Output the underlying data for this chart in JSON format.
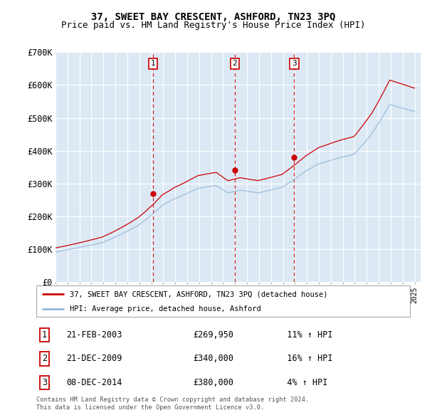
{
  "title": "37, SWEET BAY CRESCENT, ASHFORD, TN23 3PQ",
  "subtitle": "Price paid vs. HM Land Registry's House Price Index (HPI)",
  "ylabel_ticks": [
    "£0",
    "£100K",
    "£200K",
    "£300K",
    "£400K",
    "£500K",
    "£600K",
    "£700K"
  ],
  "ytick_values": [
    0,
    100000,
    200000,
    300000,
    400000,
    500000,
    600000,
    700000
  ],
  "ylim": [
    0,
    700000
  ],
  "xlim_start": 1995.0,
  "xlim_end": 2025.5,
  "hpi_color": "#93b8d8",
  "price_color": "#cc0000",
  "marker_color": "#cc0000",
  "dashed_color": "#cc0000",
  "sales": [
    {
      "label": "1",
      "date": "21-FEB-2003",
      "year": 2003.13,
      "price": 269950,
      "pct": "11%",
      "dir": "↑"
    },
    {
      "label": "2",
      "date": "21-DEC-2009",
      "year": 2009.97,
      "price": 340000,
      "pct": "16%",
      "dir": "↑"
    },
    {
      "label": "3",
      "date": "08-DEC-2014",
      "year": 2014.94,
      "price": 380000,
      "pct": "4%",
      "dir": "↑"
    }
  ],
  "legend_line1": "37, SWEET BAY CRESCENT, ASHFORD, TN23 3PQ (detached house)",
  "legend_line2": "HPI: Average price, detached house, Ashford",
  "footnote1": "Contains HM Land Registry data © Crown copyright and database right 2024.",
  "footnote2": "This data is licensed under the Open Government Licence v3.0.",
  "background_color": "#ffffff",
  "plot_bg_color": "#dce9f5",
  "grid_color": "#ffffff",
  "title_fontsize": 10,
  "subtitle_fontsize": 9
}
